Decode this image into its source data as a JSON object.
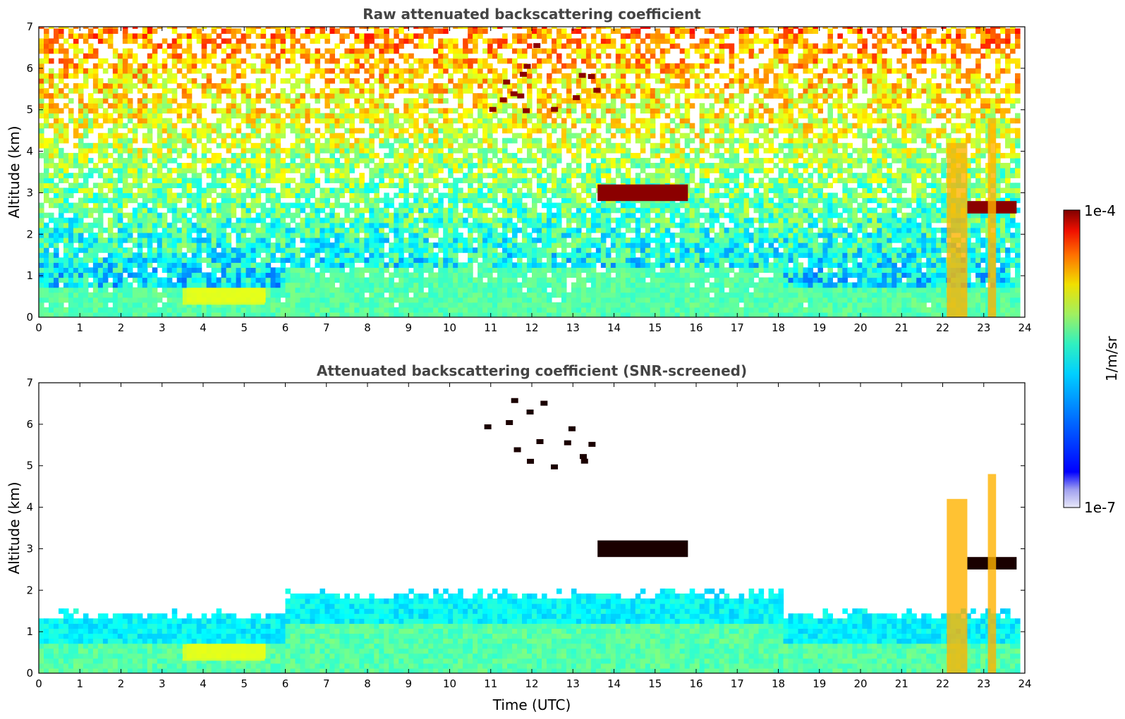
{
  "chart_data": [
    {
      "type": "heatmap",
      "title": "Raw attenuated backscattering coefficient",
      "xlabel": "",
      "ylabel": "Altitude (km)",
      "xlim": [
        0,
        24
      ],
      "ylim": [
        0,
        7
      ],
      "xticks": [
        "0",
        "1",
        "2",
        "3",
        "4",
        "5",
        "6",
        "7",
        "8",
        "9",
        "10",
        "11",
        "12",
        "13",
        "14",
        "15",
        "16",
        "17",
        "18",
        "19",
        "20",
        "21",
        "22",
        "23",
        "24"
      ],
      "yticks": [
        "0",
        "1",
        "2",
        "3",
        "4",
        "5",
        "6",
        "7"
      ],
      "screened": false,
      "features": [
        {
          "kind": "boundary_layer",
          "x": [
            0,
            23.8
          ],
          "top_km": 0.7
        },
        {
          "kind": "aerosol_layer",
          "x": [
            3.5,
            5.5
          ],
          "y": [
            0.3,
            0.7
          ]
        },
        {
          "kind": "cirrus",
          "x": [
            10.8,
            13.7
          ],
          "y": [
            4.9,
            6.6
          ]
        },
        {
          "kind": "cloud_layer",
          "x": [
            13.6,
            15.8
          ],
          "y": [
            2.8,
            3.2
          ]
        },
        {
          "kind": "cloud_layer",
          "x": [
            22.6,
            23.8
          ],
          "y": [
            2.5,
            2.8
          ]
        },
        {
          "kind": "precipitation_streak",
          "x": [
            22.1,
            22.6
          ],
          "y": [
            0.0,
            4.2
          ]
        },
        {
          "kind": "precipitation_streak",
          "x": [
            23.1,
            23.3
          ],
          "y": [
            0.0,
            4.8
          ]
        }
      ]
    },
    {
      "type": "heatmap",
      "title": "Attenuated backscattering coefficient (SNR-screened)",
      "xlabel": "Time (UTC)",
      "ylabel": "Altitude (km)",
      "xlim": [
        0,
        24
      ],
      "ylim": [
        0,
        7
      ],
      "xticks": [
        "0",
        "1",
        "2",
        "3",
        "4",
        "5",
        "6",
        "7",
        "8",
        "9",
        "10",
        "11",
        "12",
        "13",
        "14",
        "15",
        "16",
        "17",
        "18",
        "19",
        "20",
        "21",
        "22",
        "23",
        "24"
      ],
      "yticks": [
        "0",
        "1",
        "2",
        "3",
        "4",
        "5",
        "6",
        "7"
      ],
      "screened": true,
      "colorbar": {
        "label": "1/m/sr",
        "max_label": "1e-4",
        "min_label": "1e-7",
        "scale": "log",
        "range": [
          1e-07,
          0.0001
        ],
        "colormap": "jet"
      }
    }
  ]
}
